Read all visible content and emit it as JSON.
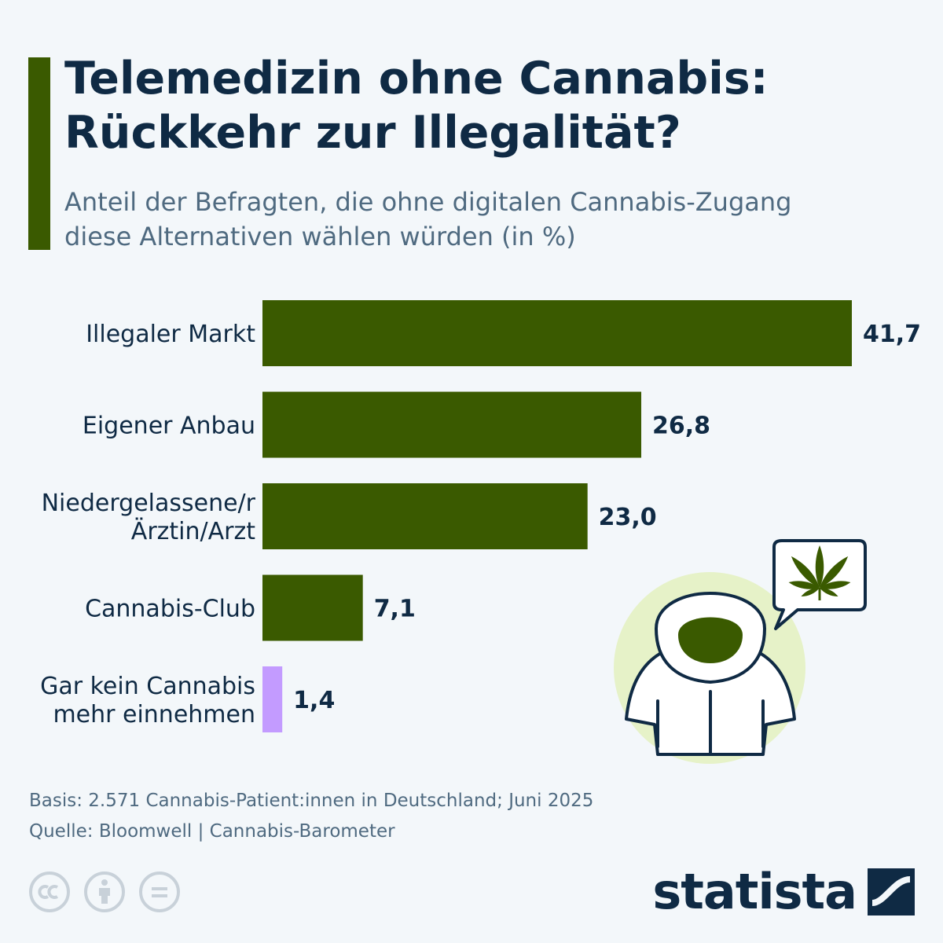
{
  "header": {
    "title_lines": [
      "Telemedizin ohne Cannabis:",
      "Rückkehr zur Illegalität?"
    ],
    "subtitle_lines": [
      "Anteil der Befragten, die ohne digitalen Cannabis-Zugang",
      "diese Alternativen wählen würden (in %)"
    ]
  },
  "chart_data": {
    "type": "bar",
    "orientation": "horizontal",
    "categories": [
      [
        "Illegaler Markt"
      ],
      [
        "Eigener Anbau"
      ],
      [
        "Niedergelassene/r",
        "Ärztin/Arzt"
      ],
      [
        "Cannabis-Club"
      ],
      [
        "Gar kein Cannabis",
        "mehr einnehmen"
      ]
    ],
    "values": [
      41.7,
      26.8,
      23.0,
      7.1,
      1.4
    ],
    "value_labels": [
      "41,7",
      "26,8",
      "23,0",
      "7,1",
      "1,4"
    ],
    "bar_colors": [
      "#3a5a00",
      "#3a5a00",
      "#3a5a00",
      "#3a5a00",
      "#c39bff"
    ],
    "xlim": [
      0,
      41.7
    ],
    "grid": false,
    "legend": "none"
  },
  "footer": {
    "basis": "Basis: 2.571 Cannabis-Patient:innen in Deutschland; Juni 2025",
    "source": "Quelle: Bloomwell | Cannabis-Barometer",
    "brand": "statista",
    "license_icons": [
      "cc-icon",
      "attribution-icon",
      "no-derivatives-icon"
    ]
  },
  "colors": {
    "accent": "#3a5a00",
    "text": "#0f2a44",
    "muted": "#4f6a80",
    "highlight": "#c39bff",
    "background": "#f3f7fa"
  }
}
